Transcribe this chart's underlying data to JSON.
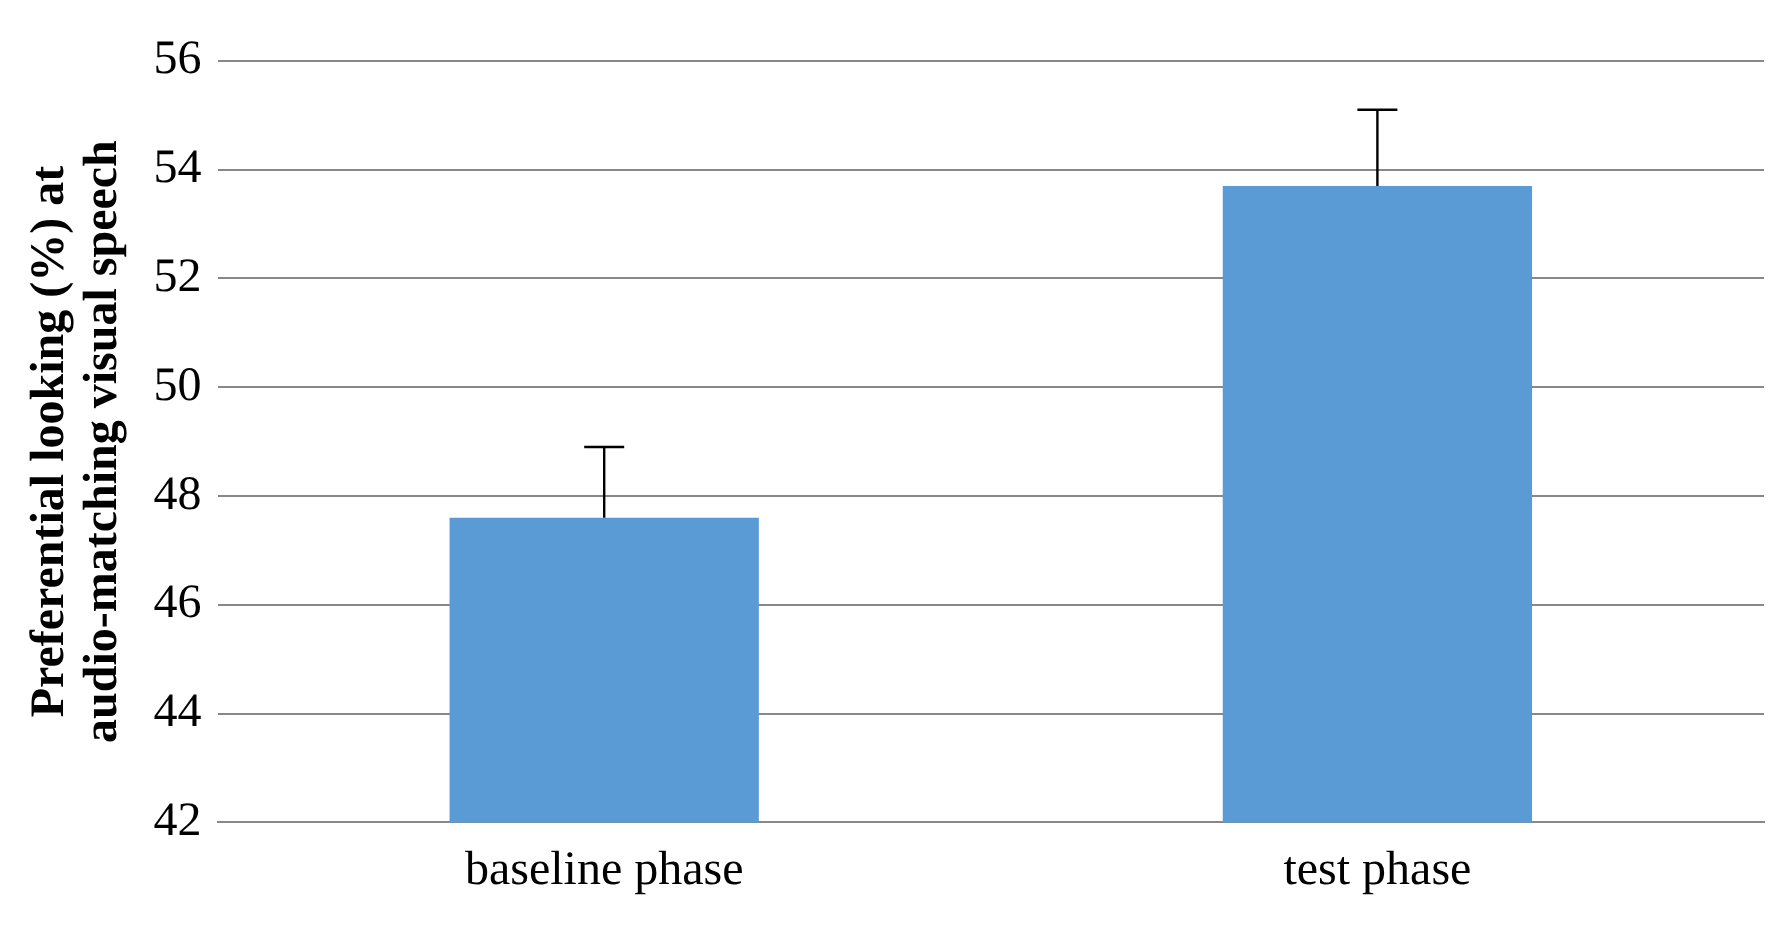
{
  "chart_data": {
    "type": "bar",
    "ylabel": "Preferential looking (%) at audio-matching visual speech",
    "categories": [
      "baseline phase",
      "test phase"
    ],
    "values": [
      47.6,
      53.7
    ],
    "errors": [
      [
        47.6,
        48.9
      ],
      [
        53.7,
        55.1
      ]
    ],
    "color": "#5b9bd5",
    "ylim": [
      42,
      56
    ],
    "yticks": [
      42,
      44,
      46,
      48,
      50,
      52,
      54,
      56
    ],
    "grid": "y"
  }
}
